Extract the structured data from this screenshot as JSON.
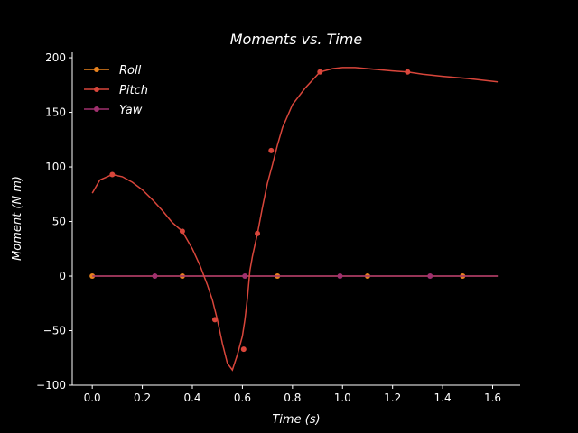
{
  "chart_data": {
    "type": "line",
    "title": "Moments vs. Time",
    "xlabel": "Time (s)",
    "ylabel": "Moment (N m)",
    "xlim": [
      -0.08,
      1.71
    ],
    "ylim": [
      -100,
      205
    ],
    "xticks": [
      0.0,
      0.2,
      0.4,
      0.6,
      0.8,
      1.0,
      1.2,
      1.4,
      1.6
    ],
    "xtick_labels": [
      "0.0",
      "0.2",
      "0.4",
      "0.6",
      "0.8",
      "1.0",
      "1.2",
      "1.4",
      "1.6"
    ],
    "yticks": [
      -100,
      -50,
      0,
      50,
      100,
      150,
      200
    ],
    "ytick_labels": [
      "−100",
      "−50",
      "0",
      "50",
      "100",
      "150",
      "200"
    ],
    "grid": false,
    "legend_position": "top-left",
    "background": "#000000",
    "series": [
      {
        "name": "Roll",
        "color": "#e8821e",
        "x": [
          0.0,
          1.62
        ],
        "y": [
          0,
          0
        ],
        "markers_x": [
          0.0,
          0.36,
          0.74,
          1.1,
          1.48
        ],
        "markers_y": [
          0,
          0,
          0,
          0,
          0
        ]
      },
      {
        "name": "Pitch",
        "color": "#d9463b",
        "x": [
          0.0,
          0.03,
          0.06,
          0.08,
          0.12,
          0.16,
          0.2,
          0.24,
          0.28,
          0.32,
          0.36,
          0.4,
          0.43,
          0.46,
          0.48,
          0.5,
          0.52,
          0.54,
          0.56,
          0.58,
          0.6,
          0.61,
          0.62,
          0.63,
          0.64,
          0.66,
          0.68,
          0.7,
          0.72,
          0.74,
          0.76,
          0.8,
          0.85,
          0.91,
          0.96,
          1.0,
          1.05,
          1.1,
          1.15,
          1.2,
          1.26,
          1.32,
          1.4,
          1.5,
          1.62
        ],
        "y": [
          76,
          88,
          91,
          93,
          91,
          86,
          79,
          70,
          60,
          49,
          41,
          25,
          10,
          -8,
          -22,
          -40,
          -62,
          -80,
          -86,
          -72,
          -55,
          -40,
          -20,
          5,
          18,
          39,
          63,
          85,
          102,
          120,
          136,
          157,
          172,
          187,
          190,
          191,
          191,
          190,
          189,
          188,
          187,
          185,
          183,
          181,
          178
        ],
        "markers_x": [
          0.08,
          0.36,
          0.49,
          0.605,
          0.66,
          0.715,
          0.91,
          1.26
        ],
        "markers_y": [
          93,
          41,
          -40,
          -67,
          39,
          115,
          187,
          187
        ]
      },
      {
        "name": "Yaw",
        "color": "#a0306e",
        "x": [
          0.0,
          1.62
        ],
        "y": [
          0,
          0
        ],
        "markers_x": [
          0.25,
          0.61,
          0.99,
          1.35
        ],
        "markers_y": [
          0,
          0,
          0,
          0
        ]
      }
    ]
  }
}
